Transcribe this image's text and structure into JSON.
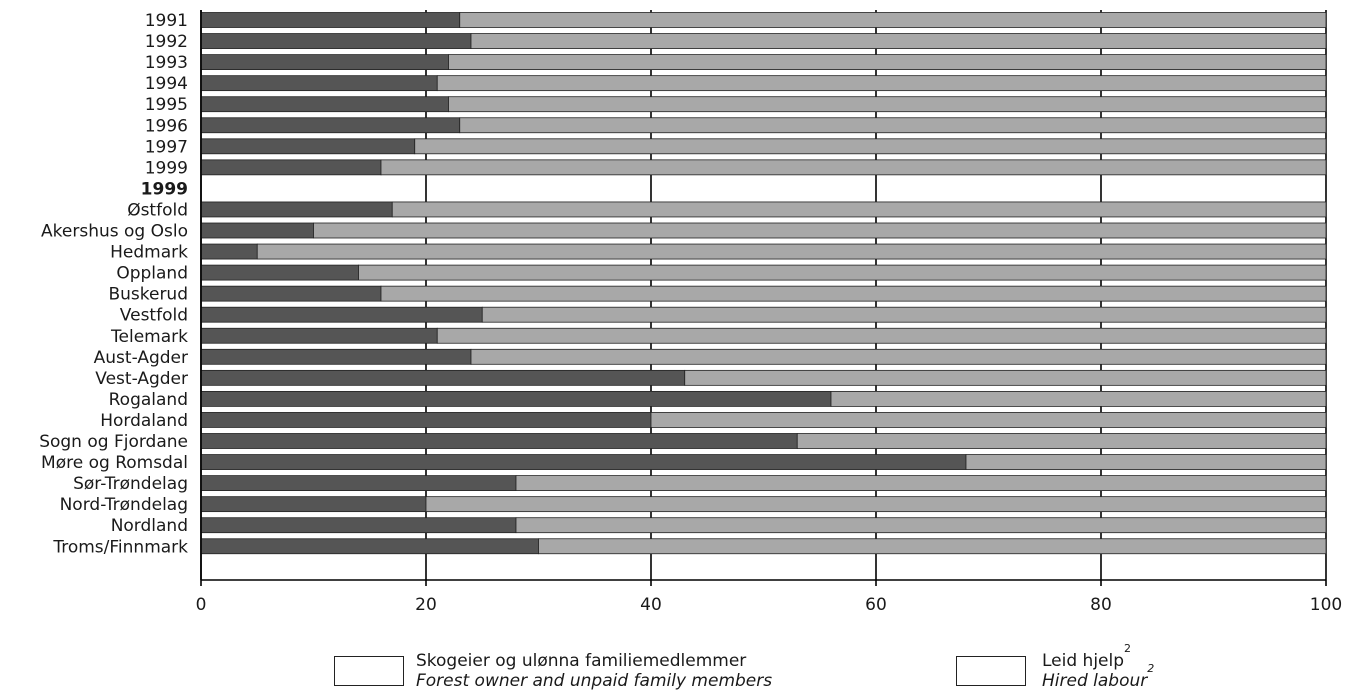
{
  "chart_data": {
    "type": "bar",
    "orientation": "horizontal",
    "stacked": true,
    "xlim": [
      0,
      100
    ],
    "xticks": [
      "0",
      "20",
      "40",
      "60",
      "80",
      "100"
    ],
    "grid": true,
    "legend_position": "bottom",
    "categories": [
      "1991",
      "1992",
      "1993",
      "1994",
      "1995",
      "1996",
      "1997",
      "1999",
      "1999",
      "Østfold",
      "Akershus og Oslo",
      "Hedmark",
      "Oppland",
      "Buskerud",
      "Vestfold",
      "Telemark",
      "Aust-Agder",
      "Vest-Agder",
      "Rogaland",
      "Hordaland",
      "Sogn og Fjordane",
      "Møre og Romsdal",
      "Sør-Trøndelag",
      "Nord-Trøndelag",
      "Nordland",
      "Troms/Finnmark"
    ],
    "group_header_index": 8,
    "series": [
      {
        "name_no": "Skogeier og ulønna familiemedlemmer",
        "name_en": "Forest owner and unpaid family members",
        "color": "#555555",
        "values": [
          23,
          24,
          22,
          21,
          22,
          23,
          19,
          16,
          null,
          17,
          10,
          5,
          14,
          16,
          25,
          21,
          24,
          43,
          56,
          40,
          53,
          68,
          28,
          20,
          28,
          30
        ]
      },
      {
        "name_no": "Leid hjelp",
        "name_en": "Hired labour",
        "footnote": "2",
        "color": "#a8a8a8",
        "values": [
          77,
          76,
          78,
          79,
          78,
          77,
          81,
          84,
          null,
          83,
          90,
          95,
          86,
          84,
          75,
          79,
          76,
          57,
          44,
          60,
          47,
          32,
          72,
          80,
          72,
          70
        ]
      }
    ]
  }
}
